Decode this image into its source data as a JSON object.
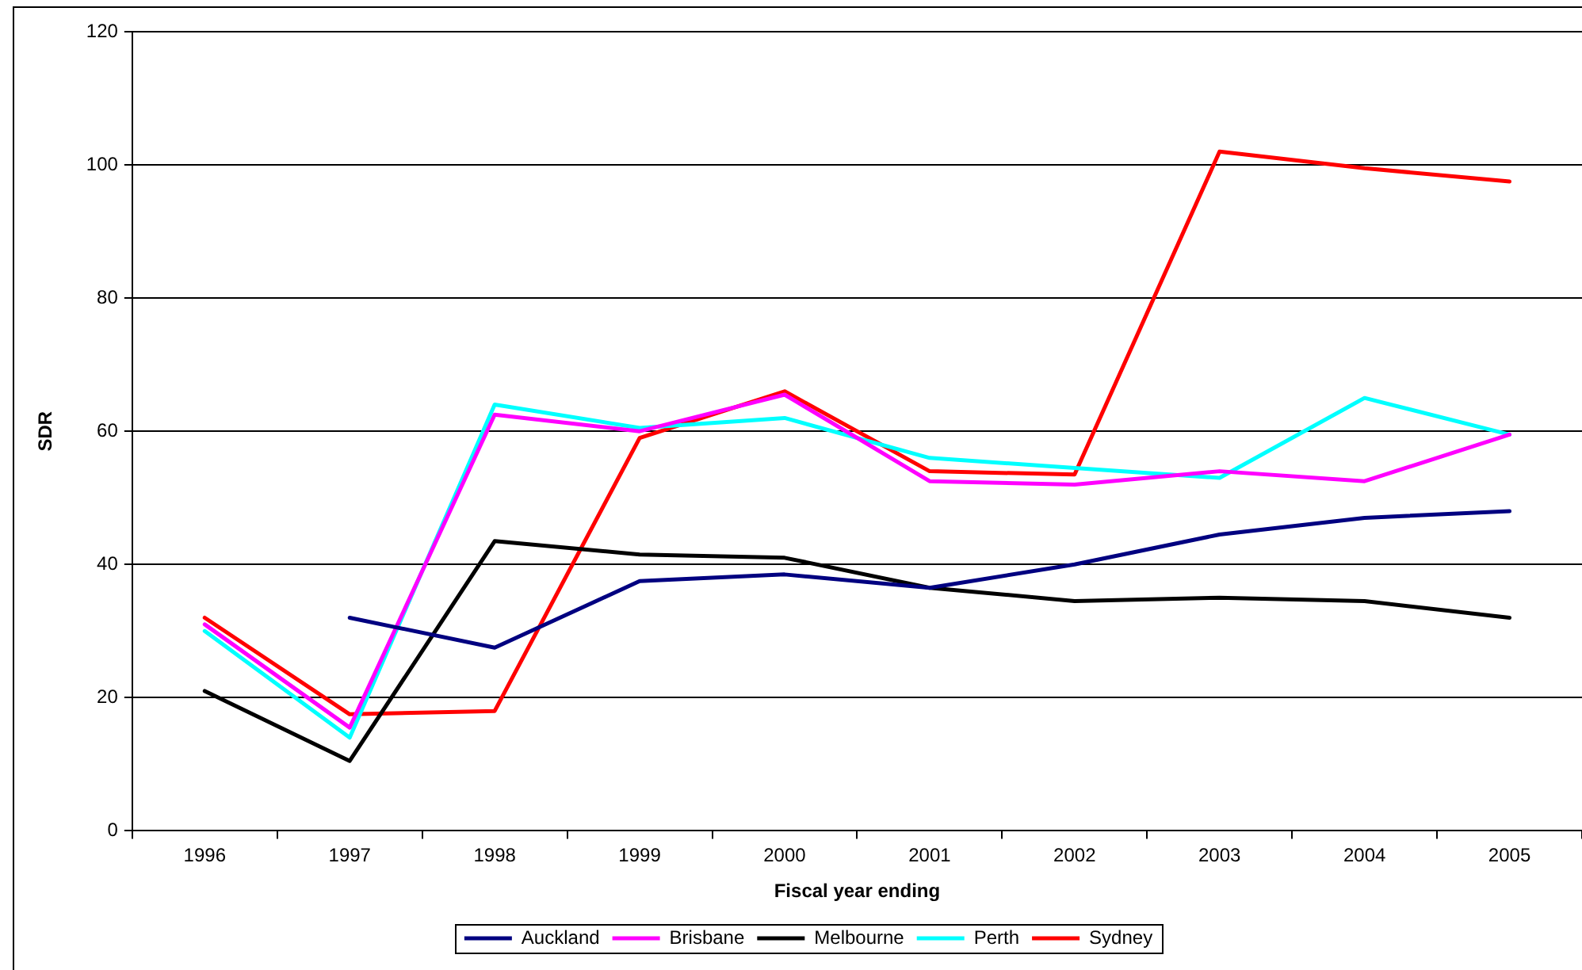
{
  "chart_data": {
    "type": "line",
    "xlabel": "Fiscal year ending",
    "ylabel": "SDR",
    "categories": [
      "1996",
      "1997",
      "1998",
      "1999",
      "2000",
      "2001",
      "2002",
      "2003",
      "2004",
      "2005"
    ],
    "series": [
      {
        "name": "Auckland",
        "color": "#000080",
        "values": [
          null,
          32,
          27.5,
          37.5,
          38.5,
          36.5,
          40,
          44.5,
          47,
          48
        ]
      },
      {
        "name": "Brisbane",
        "color": "#ff00ff",
        "values": [
          31,
          15.5,
          62.5,
          60,
          65.5,
          52.5,
          52,
          54,
          52.5,
          59.5
        ]
      },
      {
        "name": "Melbourne",
        "color": "#000000",
        "values": [
          21,
          10.5,
          43.5,
          41.5,
          41,
          36.5,
          34.5,
          35,
          34.5,
          32
        ]
      },
      {
        "name": "Perth",
        "color": "#00ffff",
        "values": [
          30,
          14,
          64,
          60.5,
          62,
          56,
          54.5,
          53,
          65,
          59.5
        ]
      },
      {
        "name": "Sydney",
        "color": "#ff0000",
        "values": [
          32,
          17.5,
          18,
          59,
          66,
          54,
          53.5,
          102,
          99.5,
          97.5
        ]
      }
    ],
    "ylim": [
      0,
      120
    ],
    "yticks": [
      0,
      20,
      40,
      60,
      80,
      100,
      120
    ],
    "grid": "y",
    "legend": "bottom"
  }
}
